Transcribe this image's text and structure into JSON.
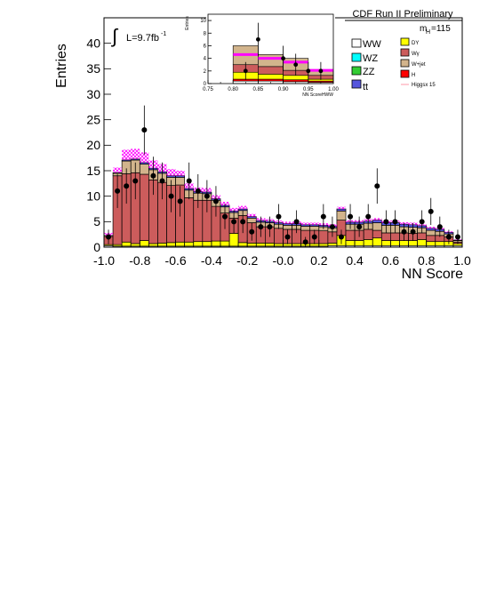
{
  "chart_data": [
    {
      "type": "bar",
      "stacked": true,
      "title": "CDF Run II Preliminary",
      "ylabel": "Entries",
      "xlabel": "NN Score",
      "luminosity_label": "L=9.7fb",
      "luminosity_exp": "-1",
      "mass_label": "m",
      "mass_sub": "H",
      "mass_value": "=115",
      "xlim": [
        -1.0,
        1.0
      ],
      "ylim": [
        0,
        45
      ],
      "x_tick_labels": [
        "-1.0",
        "-0.8",
        "-0.6",
        "-0.4",
        "-0.2",
        "-0.0",
        "0.2",
        "0.4",
        "0.6",
        "0.8",
        "1.0"
      ],
      "y_tick_labels": [
        "0",
        "5",
        "10",
        "15",
        "20",
        "25",
        "30",
        "35",
        "40"
      ],
      "bin_edges_start": -1.0,
      "bin_width": 0.05,
      "legend": [
        {
          "label": "WW",
          "color": "#ffffff"
        },
        {
          "label": "WZ",
          "color": "#00ffff"
        },
        {
          "label": "ZZ",
          "color": "#33cc33"
        },
        {
          "label": "tt",
          "color": "#5555dd"
        },
        {
          "label": "DY",
          "color": "#ffff00"
        },
        {
          "label": "Wγ",
          "color": "#cc5c5c"
        },
        {
          "label": "W+jet",
          "color": "#d2b48c"
        },
        {
          "label": "H",
          "color": "#ff0000"
        },
        {
          "label": "Higgsx 15",
          "color": "#ff99aa"
        }
      ],
      "series": [
        {
          "name": "WW",
          "color": "#ffffff",
          "values": [
            0.3,
            0.2,
            0.2,
            0.2,
            0.2,
            0.2,
            0.2,
            0.2,
            0.2,
            0.2,
            0.2,
            0.2,
            0.2,
            0.2,
            0.2,
            0.2,
            0.2,
            0.2,
            0.2,
            0.2,
            0.2,
            0.2,
            0.2,
            0.2,
            0.2,
            0.3,
            0.3,
            0.3,
            0.3,
            0.3,
            0.3,
            0.3,
            0.3,
            0.3,
            0.3,
            0.3,
            0.3,
            0.3,
            0.3,
            0.3
          ]
        },
        {
          "name": "DY",
          "color": "#ffff00",
          "values": [
            0.2,
            0.3,
            0.8,
            0.5,
            1.1,
            0.5,
            0.6,
            0.7,
            0.8,
            0.8,
            0.9,
            0.9,
            1.0,
            1.0,
            2.5,
            0.7,
            0.6,
            0.6,
            0.6,
            0.5,
            0.5,
            0.5,
            0.5,
            0.5,
            0.5,
            0.5,
            2.0,
            1.0,
            1.0,
            1.2,
            1.5,
            1.0,
            1.0,
            1.0,
            1.0,
            1.2,
            0.8,
            0.8,
            0.8,
            0.4
          ]
        },
        {
          "name": "Wγ",
          "color": "#cc5c5c",
          "values": [
            1.6,
            13.5,
            13.4,
            13.9,
            13.0,
            12.5,
            11.9,
            11.2,
            11.2,
            8.7,
            8.1,
            8.1,
            6.8,
            5.5,
            3.0,
            5.3,
            4.0,
            3.2,
            3.2,
            3.0,
            2.8,
            2.8,
            2.6,
            2.6,
            2.5,
            2.2,
            3.0,
            2.0,
            2.0,
            2.0,
            1.5,
            1.5,
            1.5,
            1.5,
            1.4,
            1.3,
            1.2,
            1.2,
            0.9,
            0.3
          ]
        },
        {
          "name": "W+jet",
          "color": "#d2b48c",
          "values": [
            0.2,
            0.5,
            2.5,
            2.5,
            2.0,
            2.0,
            1.8,
            1.6,
            1.5,
            1.5,
            1.4,
            1.3,
            1.2,
            1.2,
            1.1,
            1.0,
            0.9,
            0.9,
            0.8,
            0.8,
            0.8,
            0.8,
            0.8,
            0.8,
            0.8,
            0.8,
            1.8,
            1.2,
            1.2,
            1.2,
            1.5,
            1.5,
            1.5,
            1.2,
            1.2,
            1.0,
            1.0,
            0.8,
            0.6,
            0.3
          ]
        },
        {
          "name": "tt",
          "color": "#5555dd",
          "values": [
            0.0,
            0.1,
            0.2,
            0.2,
            0.3,
            0.3,
            0.3,
            0.3,
            0.3,
            0.3,
            0.3,
            0.3,
            0.3,
            0.3,
            0.3,
            0.3,
            0.3,
            0.3,
            0.3,
            0.3,
            0.3,
            0.3,
            0.3,
            0.3,
            0.3,
            0.3,
            0.4,
            0.4,
            0.4,
            0.4,
            0.5,
            0.5,
            0.5,
            0.5,
            0.5,
            0.4,
            0.4,
            0.4,
            0.3,
            0.1
          ]
        }
      ],
      "signal": {
        "name": "Higgsx 15",
        "color": "#ff00ff",
        "values": [
          0.5,
          1.0,
          2.0,
          2.0,
          2.0,
          1.5,
          1.5,
          1.3,
          1.0,
          1.0,
          0.8,
          0.8,
          0.7,
          0.7,
          0.6,
          0.6,
          0.5,
          0.5,
          0.4,
          0.4,
          0.4,
          0.4,
          0.4,
          0.4,
          0.4,
          0.4,
          0.4,
          0.4,
          0.4,
          0.4,
          0.4,
          0.4,
          0.4,
          0.4,
          0.4,
          0.3,
          0.3,
          0.3,
          0.2,
          0.1
        ]
      },
      "data_points": {
        "x": [
          -0.975,
          -0.925,
          -0.875,
          -0.825,
          -0.775,
          -0.725,
          -0.675,
          -0.625,
          -0.575,
          -0.525,
          -0.475,
          -0.425,
          -0.375,
          -0.325,
          -0.275,
          -0.225,
          -0.175,
          -0.125,
          -0.075,
          -0.025,
          0.025,
          0.075,
          0.125,
          0.175,
          0.225,
          0.275,
          0.325,
          0.375,
          0.425,
          0.475,
          0.525,
          0.575,
          0.625,
          0.675,
          0.725,
          0.775,
          0.825,
          0.875,
          0.925,
          0.975
        ],
        "y": [
          2,
          11,
          12,
          13,
          23,
          14,
          13,
          10,
          9,
          13,
          11,
          10,
          9,
          6,
          5,
          5,
          3,
          4,
          4,
          6,
          2,
          5,
          1,
          2,
          6,
          4,
          2,
          6,
          4,
          6,
          12,
          5,
          5,
          3,
          3,
          5,
          7,
          4,
          2,
          2
        ]
      }
    },
    {
      "type": "bar",
      "stacked": true,
      "title": "",
      "ylabel": "Entries",
      "xlabel": "NN ScoreHWW",
      "xlim": [
        0.75,
        1.0
      ],
      "ylim": [
        0,
        11
      ],
      "x_tick_labels": [
        "0.75",
        "0.80",
        "0.85",
        "0.90",
        "0.95",
        "1.00"
      ],
      "y_tick_labels": [
        "0",
        "2",
        "4",
        "6",
        "8",
        "10"
      ],
      "bin_edges_start": 0.8,
      "bin_width": 0.05,
      "series": [
        {
          "name": "WW",
          "color": "#ffffff",
          "values": [
            0.4,
            0.4,
            0.3,
            0.2
          ]
        },
        {
          "name": "H",
          "color": "#ff0000",
          "values": [
            0.3,
            0.3,
            0.3,
            0.2
          ]
        },
        {
          "name": "DY",
          "color": "#ffff00",
          "values": [
            1.1,
            0.8,
            0.7,
            0.3
          ]
        },
        {
          "name": "Wγ",
          "color": "#cc5c5c",
          "values": [
            1.2,
            1.2,
            0.8,
            0.6
          ]
        },
        {
          "name": "W+jet",
          "color": "#d2b48c",
          "values": [
            3.0,
            1.9,
            1.9,
            0.7
          ]
        }
      ],
      "signal": {
        "name": "Higgsx 15",
        "color": "#ff00ff",
        "values": [
          4.6,
          4.0,
          3.4,
          2.1
        ]
      },
      "data_points": {
        "x": [
          0.825,
          0.85,
          0.9,
          0.925,
          0.95,
          0.975
        ],
        "y": [
          2,
          7,
          4,
          3,
          2,
          2
        ]
      }
    }
  ]
}
